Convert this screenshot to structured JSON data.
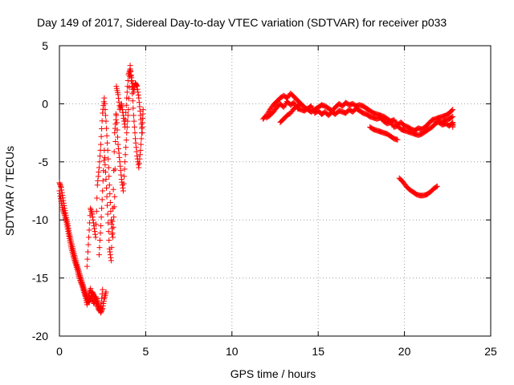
{
  "chart_data": {
    "type": "scatter",
    "title": "Day 149 of 2017, Sidereal Day-to-day VTEC variation (SDTVAR) for receiver p033",
    "xlabel": "GPS time / hours",
    "ylabel": "SDTVAR / TECUs",
    "xlim": [
      0,
      25
    ],
    "ylim": [
      -20,
      5
    ],
    "xticks": [
      0,
      5,
      10,
      15,
      20,
      25
    ],
    "yticks": [
      -20,
      -15,
      -10,
      -5,
      0,
      5
    ],
    "xtick_labels": [
      "0",
      "5",
      "10",
      "15",
      "20",
      "25"
    ],
    "ytick_labels": [
      "-20",
      "-15",
      "-10",
      "-5",
      "0",
      "5"
    ],
    "grid": true,
    "marker": "+",
    "color": "#ff0000",
    "series": [
      {
        "name": "SDTVAR",
        "segments": [
          [
            [
              0.0,
              -6.8
            ],
            [
              0.1,
              -7.2
            ],
            [
              0.2,
              -8.1
            ],
            [
              0.3,
              -9.0
            ],
            [
              0.4,
              -9.8
            ],
            [
              0.5,
              -10.5
            ],
            [
              0.6,
              -11.3
            ],
            [
              0.7,
              -12.0
            ],
            [
              0.8,
              -12.6
            ],
            [
              0.9,
              -13.2
            ],
            [
              1.0,
              -13.8
            ],
            [
              1.1,
              -14.3
            ],
            [
              1.2,
              -14.8
            ],
            [
              1.3,
              -15.3
            ],
            [
              1.4,
              -15.8
            ],
            [
              1.5,
              -16.3
            ],
            [
              1.6,
              -16.8
            ],
            [
              1.7,
              -17.1
            ],
            [
              1.8,
              -16.8
            ],
            [
              1.9,
              -16.2
            ],
            [
              2.0,
              -16.5
            ],
            [
              2.1,
              -17.0
            ],
            [
              2.2,
              -17.4
            ],
            [
              2.3,
              -17.8
            ],
            [
              2.4,
              -17.5
            ],
            [
              2.5,
              -16.0
            ]
          ],
          [
            [
              0.0,
              -7.5
            ],
            [
              0.1,
              -8.4
            ],
            [
              0.2,
              -9.1
            ],
            [
              0.3,
              -9.6
            ],
            [
              0.4,
              -10.2
            ],
            [
              0.5,
              -11.0
            ],
            [
              0.6,
              -11.8
            ],
            [
              0.7,
              -12.5
            ],
            [
              0.8,
              -13.1
            ],
            [
              0.9,
              -13.6
            ],
            [
              1.0,
              -14.1
            ],
            [
              1.1,
              -14.7
            ],
            [
              1.2,
              -15.2
            ],
            [
              1.3,
              -15.6
            ],
            [
              1.4,
              -16.1
            ],
            [
              1.5,
              -16.6
            ],
            [
              1.6,
              -17.3
            ],
            [
              1.7,
              -16.5
            ],
            [
              1.8,
              -15.9
            ],
            [
              1.9,
              -16.8
            ],
            [
              2.0,
              -17.2
            ],
            [
              2.1,
              -16.6
            ],
            [
              2.2,
              -17.0
            ],
            [
              2.3,
              -17.5
            ],
            [
              2.4,
              -18.0
            ],
            [
              2.5,
              -17.6
            ],
            [
              2.6,
              -16.8
            ],
            [
              2.7,
              -16.2
            ]
          ],
          [
            [
              1.6,
              -14.0
            ],
            [
              1.7,
              -11.5
            ],
            [
              1.8,
              -9.0
            ],
            [
              1.9,
              -9.5
            ],
            [
              2.0,
              -10.5
            ],
            [
              2.1,
              -11.5
            ],
            [
              2.2,
              -7.0
            ],
            [
              2.3,
              -5.5
            ],
            [
              2.4,
              -3.5
            ],
            [
              2.5,
              -0.8
            ],
            [
              2.6,
              0.5
            ],
            [
              2.7,
              -1.5
            ],
            [
              2.8,
              -4.0
            ],
            [
              2.9,
              -7.0
            ],
            [
              3.0,
              -10.0
            ],
            [
              3.1,
              -11.5
            ],
            [
              3.2,
              -8.0
            ],
            [
              3.3,
              1.5
            ],
            [
              3.4,
              0.8
            ],
            [
              3.5,
              -0.5
            ],
            [
              3.6,
              0.0
            ],
            [
              3.7,
              -1.0
            ],
            [
              3.8,
              -2.0
            ],
            [
              3.9,
              0.5
            ],
            [
              4.0,
              2.5
            ],
            [
              4.1,
              3.0
            ],
            [
              4.2,
              2.0
            ],
            [
              4.3,
              1.0
            ],
            [
              4.4,
              1.8
            ],
            [
              4.5,
              1.5
            ],
            [
              4.6,
              0.5
            ],
            [
              4.7,
              -1.0
            ],
            [
              4.8,
              -2.5
            ]
          ],
          [
            [
              2.3,
              -13.0
            ],
            [
              2.4,
              -10.5
            ],
            [
              2.5,
              -7.5
            ],
            [
              2.6,
              -4.0
            ],
            [
              2.7,
              -6.5
            ],
            [
              2.8,
              -9.5
            ],
            [
              2.9,
              -12.5
            ],
            [
              3.0,
              -13.5
            ],
            [
              3.1,
              -9.0
            ],
            [
              3.2,
              -2.5
            ],
            [
              3.3,
              -1.0
            ],
            [
              3.4,
              -3.5
            ],
            [
              3.5,
              -5.0
            ],
            [
              3.6,
              -6.5
            ],
            [
              3.7,
              -7.5
            ],
            [
              3.8,
              -5.0
            ],
            [
              3.9,
              -2.5
            ],
            [
              4.0,
              -0.5
            ],
            [
              4.1,
              3.3
            ],
            [
              4.2,
              1.5
            ],
            [
              4.3,
              -1.0
            ],
            [
              4.4,
              -3.0
            ],
            [
              4.5,
              -4.5
            ],
            [
              4.6,
              -5.5
            ],
            [
              4.7,
              -4.0
            ],
            [
              4.8,
              -2.0
            ],
            [
              4.85,
              -0.5
            ]
          ],
          [
            [
              11.8,
              -1.3
            ],
            [
              12.0,
              -1.0
            ],
            [
              12.2,
              -0.5
            ],
            [
              12.4,
              -0.1
            ],
            [
              12.6,
              0.2
            ],
            [
              12.8,
              0.5
            ],
            [
              13.0,
              0.7
            ],
            [
              13.2,
              0.5
            ],
            [
              13.4,
              0.9
            ],
            [
              13.6,
              0.6
            ],
            [
              13.8,
              0.3
            ],
            [
              14.0,
              0.0
            ],
            [
              14.2,
              -0.3
            ],
            [
              14.4,
              -0.5
            ],
            [
              14.6,
              -0.7
            ],
            [
              14.8,
              -0.5
            ],
            [
              15.0,
              -0.3
            ],
            [
              15.2,
              -0.1
            ],
            [
              15.4,
              -0.2
            ],
            [
              15.6,
              -0.4
            ],
            [
              15.8,
              -0.6
            ],
            [
              16.0,
              -0.3
            ],
            [
              16.2,
              0.0
            ],
            [
              16.4,
              -0.2
            ],
            [
              16.6,
              0.1
            ],
            [
              16.8,
              -0.1
            ],
            [
              17.0,
              0.0
            ],
            [
              17.2,
              -0.2
            ],
            [
              17.4,
              -0.1
            ],
            [
              17.6,
              -0.2
            ],
            [
              17.8,
              -0.4
            ],
            [
              18.0,
              -0.6
            ],
            [
              18.2,
              -0.8
            ],
            [
              18.4,
              -0.9
            ],
            [
              18.6,
              -1.0
            ],
            [
              18.8,
              -1.1
            ],
            [
              19.0,
              -1.3
            ],
            [
              19.2,
              -1.5
            ],
            [
              19.4,
              -1.4
            ],
            [
              19.6,
              -1.8
            ],
            [
              19.8,
              -1.6
            ],
            [
              20.0,
              -1.9
            ],
            [
              20.2,
              -2.0
            ],
            [
              20.4,
              -2.2
            ],
            [
              20.6,
              -2.3
            ],
            [
              20.8,
              -2.1
            ],
            [
              21.0,
              -2.2
            ],
            [
              21.2,
              -2.0
            ],
            [
              21.4,
              -1.7
            ],
            [
              21.6,
              -1.4
            ],
            [
              21.8,
              -1.3
            ],
            [
              22.0,
              -1.2
            ],
            [
              22.2,
              -1.1
            ],
            [
              22.4,
              -1.0
            ],
            [
              22.6,
              -0.8
            ],
            [
              22.8,
              -0.5
            ]
          ],
          [
            [
              12.0,
              -1.2
            ],
            [
              12.2,
              -1.0
            ],
            [
              12.4,
              -0.7
            ],
            [
              12.6,
              -0.3
            ],
            [
              12.8,
              0.0
            ],
            [
              13.0,
              -0.3
            ],
            [
              13.2,
              0.2
            ],
            [
              13.4,
              -0.1
            ],
            [
              13.6,
              0.1
            ],
            [
              13.8,
              -0.4
            ],
            [
              14.0,
              -0.5
            ],
            [
              14.2,
              -0.6
            ],
            [
              14.4,
              -0.4
            ],
            [
              14.6,
              -0.2
            ],
            [
              14.8,
              -0.8
            ],
            [
              15.0,
              -0.6
            ],
            [
              15.2,
              -0.9
            ],
            [
              15.4,
              -0.7
            ],
            [
              15.6,
              -1.0
            ],
            [
              15.8,
              -0.7
            ],
            [
              16.0,
              -0.9
            ],
            [
              16.2,
              -0.6
            ],
            [
              16.4,
              -0.7
            ],
            [
              16.6,
              -0.8
            ],
            [
              16.8,
              -0.5
            ],
            [
              17.0,
              -0.7
            ],
            [
              17.2,
              -0.4
            ],
            [
              17.4,
              -0.6
            ],
            [
              17.6,
              -0.8
            ],
            [
              17.8,
              -0.9
            ],
            [
              18.0,
              -1.1
            ],
            [
              18.2,
              -1.2
            ],
            [
              18.4,
              -1.3
            ],
            [
              18.6,
              -1.2
            ],
            [
              18.8,
              -1.5
            ],
            [
              19.0,
              -1.7
            ],
            [
              19.2,
              -1.6
            ],
            [
              19.4,
              -2.0
            ],
            [
              19.6,
              -1.9
            ],
            [
              19.8,
              -2.2
            ],
            [
              20.0,
              -2.3
            ],
            [
              20.2,
              -2.4
            ],
            [
              20.4,
              -2.5
            ],
            [
              20.6,
              -2.6
            ],
            [
              20.8,
              -2.7
            ],
            [
              21.0,
              -2.6
            ],
            [
              21.2,
              -2.4
            ],
            [
              21.4,
              -2.2
            ],
            [
              21.6,
              -2.0
            ],
            [
              21.8,
              -1.7
            ],
            [
              22.0,
              -1.5
            ],
            [
              22.2,
              -1.6
            ],
            [
              22.4,
              -1.4
            ],
            [
              22.6,
              -1.3
            ],
            [
              22.8,
              -1.1
            ]
          ],
          [
            [
              12.8,
              -1.6
            ],
            [
              13.0,
              -1.3
            ],
            [
              13.2,
              -1.0
            ],
            [
              13.4,
              -0.8
            ],
            [
              13.6,
              -0.4
            ],
            [
              13.8,
              -0.2
            ],
            [
              14.0,
              0.0
            ]
          ],
          [
            [
              18.0,
              -2.0
            ],
            [
              18.2,
              -2.2
            ],
            [
              18.4,
              -2.3
            ],
            [
              18.6,
              -2.4
            ],
            [
              18.8,
              -2.5
            ],
            [
              19.0,
              -2.6
            ],
            [
              19.2,
              -2.8
            ],
            [
              19.4,
              -3.0
            ],
            [
              19.6,
              -3.1
            ]
          ],
          [
            [
              22.0,
              -1.6
            ],
            [
              22.2,
              -1.8
            ],
            [
              22.4,
              -1.7
            ],
            [
              22.6,
              -1.9
            ],
            [
              22.8,
              -1.6
            ],
            [
              22.8,
              -2.0
            ]
          ],
          [
            [
              19.7,
              -6.4
            ],
            [
              19.9,
              -6.7
            ],
            [
              20.1,
              -7.1
            ],
            [
              20.3,
              -7.4
            ],
            [
              20.5,
              -7.6
            ],
            [
              20.7,
              -7.8
            ],
            [
              20.9,
              -7.9
            ],
            [
              21.1,
              -7.9
            ],
            [
              21.3,
              -7.8
            ],
            [
              21.5,
              -7.6
            ],
            [
              21.7,
              -7.3
            ],
            [
              21.9,
              -7.1
            ]
          ]
        ]
      }
    ]
  }
}
